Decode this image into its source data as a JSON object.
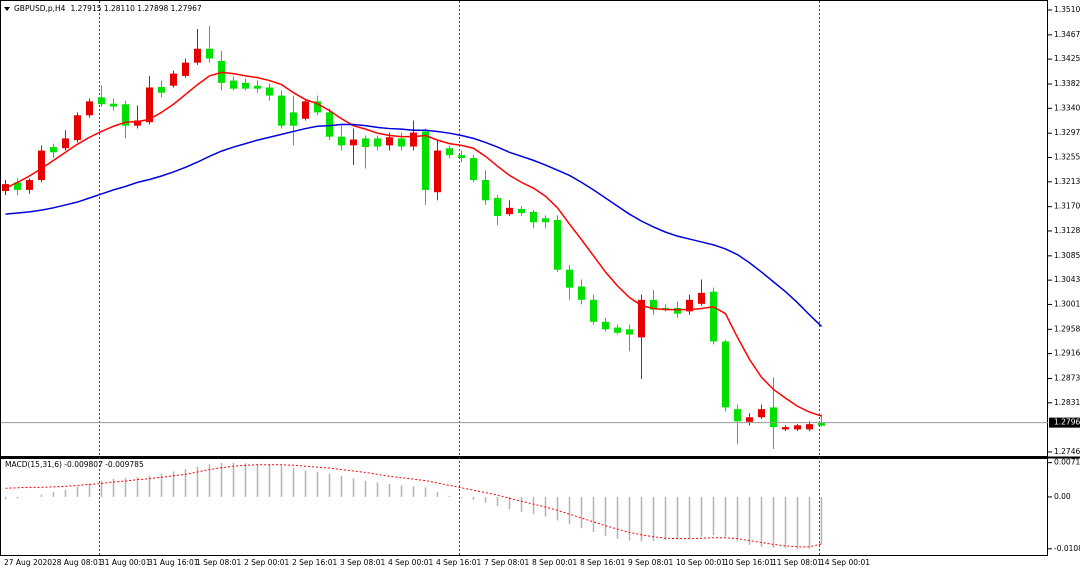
{
  "chart_data": [
    {
      "type": "candlestick",
      "title": "GBPUSD,p,H4",
      "subtitle": "1.27915 1.28110 1.27898 1.27967",
      "up_color": "#00e000",
      "down_color": "#e60000",
      "open": [
        1.3209,
        1.3199,
        1.3216,
        1.3267,
        1.3264,
        1.3288,
        1.3328,
        1.3352,
        1.3347,
        1.3343,
        1.331,
        1.3319,
        1.3376,
        1.3367,
        1.34,
        1.3419,
        1.3443,
        1.3426,
        1.3384,
        1.3374,
        1.3374,
        1.3374,
        1.3362,
        1.331,
        1.331,
        1.3352,
        1.3333,
        1.3291,
        1.3276,
        1.3286,
        1.3273,
        1.3274,
        1.329,
        1.3274,
        1.3298,
        1.3199,
        1.3267,
        1.3259,
        1.3254,
        1.3216,
        1.3181,
        1.3154,
        1.3168,
        1.3159,
        1.3143,
        1.3143,
        1.3061,
        1.303,
        1.3009,
        1.2971,
        1.2958,
        1.2952,
        1.2949,
        1.3009,
        1.2992,
        1.2992,
        1.2985,
        1.3009,
        1.3021,
        1.2937,
        1.2823,
        1.2799,
        1.2806,
        1.282,
        1.2789,
        1.2789,
        1.2792,
        1.2794,
        1.27915
      ],
      "high": [
        1.3216,
        1.3219,
        1.3219,
        1.3276,
        1.3279,
        1.3302,
        1.3333,
        1.3357,
        1.3379,
        1.3357,
        1.3353,
        1.3345,
        1.3396,
        1.3388,
        1.3405,
        1.3426,
        1.3477,
        1.3482,
        1.3439,
        1.3395,
        1.3391,
        1.3388,
        1.3383,
        1.3371,
        1.3362,
        1.3357,
        1.3362,
        1.334,
        1.331,
        1.3305,
        1.3293,
        1.3293,
        1.3298,
        1.3298,
        1.3319,
        1.3305,
        1.3285,
        1.3276,
        1.3267,
        1.3259,
        1.3233,
        1.319,
        1.3181,
        1.3171,
        1.3164,
        1.3155,
        1.3155,
        1.3069,
        1.3044,
        1.3018,
        1.2978,
        1.2966,
        1.2966,
        1.3018,
        1.3026,
        1.3001,
        1.3006,
        1.3018,
        1.3044,
        1.303,
        1.294,
        1.2828,
        1.2813,
        1.2828,
        1.2875,
        1.2792,
        1.2794,
        1.2799,
        1.2811
      ],
      "low": [
        1.319,
        1.319,
        1.3192,
        1.3212,
        1.3254,
        1.3267,
        1.3281,
        1.3324,
        1.3343,
        1.3336,
        1.3288,
        1.3305,
        1.3312,
        1.3359,
        1.3376,
        1.3393,
        1.3415,
        1.3419,
        1.3371,
        1.3371,
        1.3371,
        1.3367,
        1.3353,
        1.3305,
        1.3276,
        1.3319,
        1.3328,
        1.3285,
        1.3267,
        1.3242,
        1.3236,
        1.3267,
        1.3267,
        1.3267,
        1.3267,
        1.3173,
        1.3181,
        1.3254,
        1.3247,
        1.3212,
        1.3173,
        1.3138,
        1.3154,
        1.3154,
        1.3133,
        1.3133,
        1.3057,
        1.3009,
        1.3001,
        1.2966,
        1.2954,
        1.2949,
        1.292,
        1.2872,
        1.2983,
        1.2989,
        1.2978,
        1.2983,
        1.2999,
        1.2932,
        1.2816,
        1.276,
        1.2792,
        1.2803,
        1.2751,
        1.2782,
        1.2782,
        1.2782,
        1.27898
      ],
      "close": [
        1.3197,
        1.3212,
        1.3199,
        1.3216,
        1.3273,
        1.3271,
        1.3285,
        1.3328,
        1.3359,
        1.3348,
        1.3347,
        1.331,
        1.3316,
        1.3377,
        1.3379,
        1.3396,
        1.3419,
        1.3443,
        1.3422,
        1.3388,
        1.3384,
        1.3379,
        1.3376,
        1.3362,
        1.3333,
        1.3322,
        1.3352,
        1.3333,
        1.3291,
        1.3276,
        1.3288,
        1.3288,
        1.3276,
        1.3288,
        1.3274,
        1.33,
        1.3195,
        1.3271,
        1.3259,
        1.3254,
        1.3216,
        1.3185,
        1.3157,
        1.3166,
        1.3161,
        1.315,
        1.3147,
        1.3061,
        1.3032,
        1.3009,
        1.2971,
        1.2961,
        1.2958,
        1.2944,
        1.3009,
        1.2995,
        1.2995,
        1.2989,
        1.3002,
        1.3023,
        1.2937,
        1.282,
        1.2798,
        1.2806,
        1.2823,
        1.2785,
        1.2785,
        1.2785,
        1.27967
      ],
      "series": [
        {
          "color": "#ff0000",
          "values": [
            1.3202,
            1.3212,
            1.3223,
            1.3236,
            1.325,
            1.3264,
            1.3278,
            1.329,
            1.33,
            1.3309,
            1.3316,
            1.3317,
            1.3321,
            1.3333,
            1.3347,
            1.3364,
            1.3381,
            1.3396,
            1.3402,
            1.34,
            1.3396,
            1.3393,
            1.3388,
            1.3381,
            1.3367,
            1.3355,
            1.3348,
            1.3336,
            1.3322,
            1.331,
            1.3304,
            1.3297,
            1.3293,
            1.3291,
            1.3291,
            1.3293,
            1.3285,
            1.3279,
            1.3276,
            1.3271,
            1.3257,
            1.324,
            1.3224,
            1.3212,
            1.3202,
            1.3188,
            1.3168,
            1.314,
            1.3113,
            1.3085,
            1.3057,
            1.3033,
            1.3013,
            1.2999,
            1.2994,
            1.2992,
            1.2992,
            1.2992,
            1.2994,
            1.2997,
            1.2985,
            1.2944,
            1.2906,
            1.2875,
            1.2854,
            1.2839,
            1.2825,
            1.2815,
            1.2808
          ]
        },
        {
          "color": "#0000dd",
          "values": [
            1.3157,
            1.3159,
            1.3161,
            1.3164,
            1.3168,
            1.3173,
            1.3178,
            1.3185,
            1.3192,
            1.3199,
            1.3205,
            1.3212,
            1.3217,
            1.3223,
            1.323,
            1.3238,
            1.3247,
            1.3257,
            1.3266,
            1.3273,
            1.3279,
            1.3285,
            1.329,
            1.3295,
            1.33,
            1.3305,
            1.3309,
            1.331,
            1.3312,
            1.3312,
            1.331,
            1.3307,
            1.3305,
            1.3304,
            1.3302,
            1.3302,
            1.33,
            1.3297,
            1.3293,
            1.3288,
            1.3281,
            1.3273,
            1.3264,
            1.3257,
            1.325,
            1.3242,
            1.3233,
            1.3224,
            1.3212,
            1.3199,
            1.3185,
            1.3171,
            1.3157,
            1.3145,
            1.3135,
            1.3126,
            1.3119,
            1.3114,
            1.3109,
            1.3104,
            1.3097,
            1.3087,
            1.3073,
            1.3057,
            1.304,
            1.3023,
            1.3004,
            1.2983,
            1.2963
          ]
        }
      ],
      "ylim": [
        1.2739,
        1.35255
      ],
      "yticks": [
        {
          "value": 1.351,
          "label": "1.35100"
        },
        {
          "value": 1.3467,
          "label": "1.34670"
        },
        {
          "value": 1.3425,
          "label": "1.34250"
        },
        {
          "value": 1.3382,
          "label": "1.33820"
        },
        {
          "value": 1.334,
          "label": "1.33400"
        },
        {
          "value": 1.3297,
          "label": "1.32970"
        },
        {
          "value": 1.3255,
          "label": "1.32550"
        },
        {
          "value": 1.3213,
          "label": "1.32130"
        },
        {
          "value": 1.317,
          "label": "1.31700"
        },
        {
          "value": 1.3128,
          "label": "1.31280"
        },
        {
          "value": 1.3085,
          "label": "1.30850"
        },
        {
          "value": 1.3043,
          "label": "1.30430"
        },
        {
          "value": 1.3001,
          "label": "1.30010"
        },
        {
          "value": 1.2958,
          "label": "1.29580"
        },
        {
          "value": 1.2916,
          "label": "1.29160"
        },
        {
          "value": 1.2873,
          "label": "1.28730"
        },
        {
          "value": 1.2831,
          "label": "1.28310"
        },
        {
          "value": 1.2746,
          "label": "1.27460"
        }
      ],
      "current_price": {
        "value": 1.27967,
        "label": "1.27967"
      },
      "x_labels": [
        "27 Aug 2020",
        "28 Aug 08:01",
        "31 Aug 00:01",
        "31 Aug 16:01",
        "1 Sep 08:01",
        "2 Sep 00:01",
        "2 Sep 16:01",
        "3 Sep 08:01",
        "4 Sep 00:01",
        "4 Sep 16:01",
        "7 Sep 08:01",
        "8 Sep 00:01",
        "8 Sep 16:01",
        "9 Sep 08:01",
        "10 Sep 00:01",
        "10 Sep 16:01",
        "11 Sep 08:01",
        "14 Sep 00:01"
      ]
    },
    {
      "type": "macd",
      "title": "MACD(15,31,6) -0.009807 -0.009785",
      "series": [
        {
          "kind": "bar",
          "color": "#b4b4b4",
          "values": [
            -0.0005,
            -0.0003,
            0,
            0.0005,
            0.001,
            0.0015,
            0.0021,
            0.0028,
            0.0034,
            0.0038,
            0.004,
            0.0041,
            0.0044,
            0.0048,
            0.0053,
            0.0058,
            0.0063,
            0.0068,
            0.0071,
            0.0071,
            0.007,
            0.0069,
            0.0067,
            0.0065,
            0.006,
            0.0055,
            0.0052,
            0.0049,
            0.0044,
            0.0039,
            0.0034,
            0.003,
            0.0027,
            0.0024,
            0.0022,
            0.002,
            0.001,
            0.0002,
            -0.0002,
            -0.0006,
            -0.0012,
            -0.0019,
            -0.0026,
            -0.0031,
            -0.0036,
            -0.0041,
            -0.0049,
            -0.0057,
            -0.0065,
            -0.0073,
            -0.0081,
            -0.0087,
            -0.0091,
            -0.0093,
            -0.0092,
            -0.009,
            -0.0088,
            -0.0086,
            -0.0083,
            -0.008,
            -0.0083,
            -0.0092,
            -0.01,
            -0.0104,
            -0.0106,
            -0.0107,
            -0.0108,
            -0.0108,
            -0.009807
          ]
        },
        {
          "kind": "line",
          "color": "#ff0000",
          "values": [
            0.0018,
            0.0019,
            0.002,
            0.002,
            0.0021,
            0.0022,
            0.0024,
            0.0026,
            0.0028,
            0.0031,
            0.0033,
            0.0036,
            0.0038,
            0.0041,
            0.0044,
            0.0047,
            0.0052,
            0.0057,
            0.0061,
            0.0064,
            0.0066,
            0.0067,
            0.0067,
            0.0067,
            0.0066,
            0.0064,
            0.0062,
            0.006,
            0.0057,
            0.0054,
            0.0051,
            0.0047,
            0.0043,
            0.004,
            0.0037,
            0.0034,
            0.0029,
            0.0024,
            0.0019,
            0.0014,
            0.0009,
            0.0004,
            -0.0003,
            -0.0009,
            -0.0015,
            -0.0021,
            -0.0028,
            -0.0036,
            -0.0044,
            -0.0052,
            -0.006,
            -0.0067,
            -0.0074,
            -0.0079,
            -0.0083,
            -0.0086,
            -0.0087,
            -0.0087,
            -0.0086,
            -0.0085,
            -0.0085,
            -0.0087,
            -0.0091,
            -0.0095,
            -0.0099,
            -0.0102,
            -0.0104,
            -0.0104,
            -0.009785
          ]
        }
      ],
      "ylim": [
        -0.0121,
        0.0079
      ],
      "yticks": [
        0.007134,
        {
          "value": 0,
          "label": "0.00"
        },
        -0.01081
      ]
    }
  ]
}
